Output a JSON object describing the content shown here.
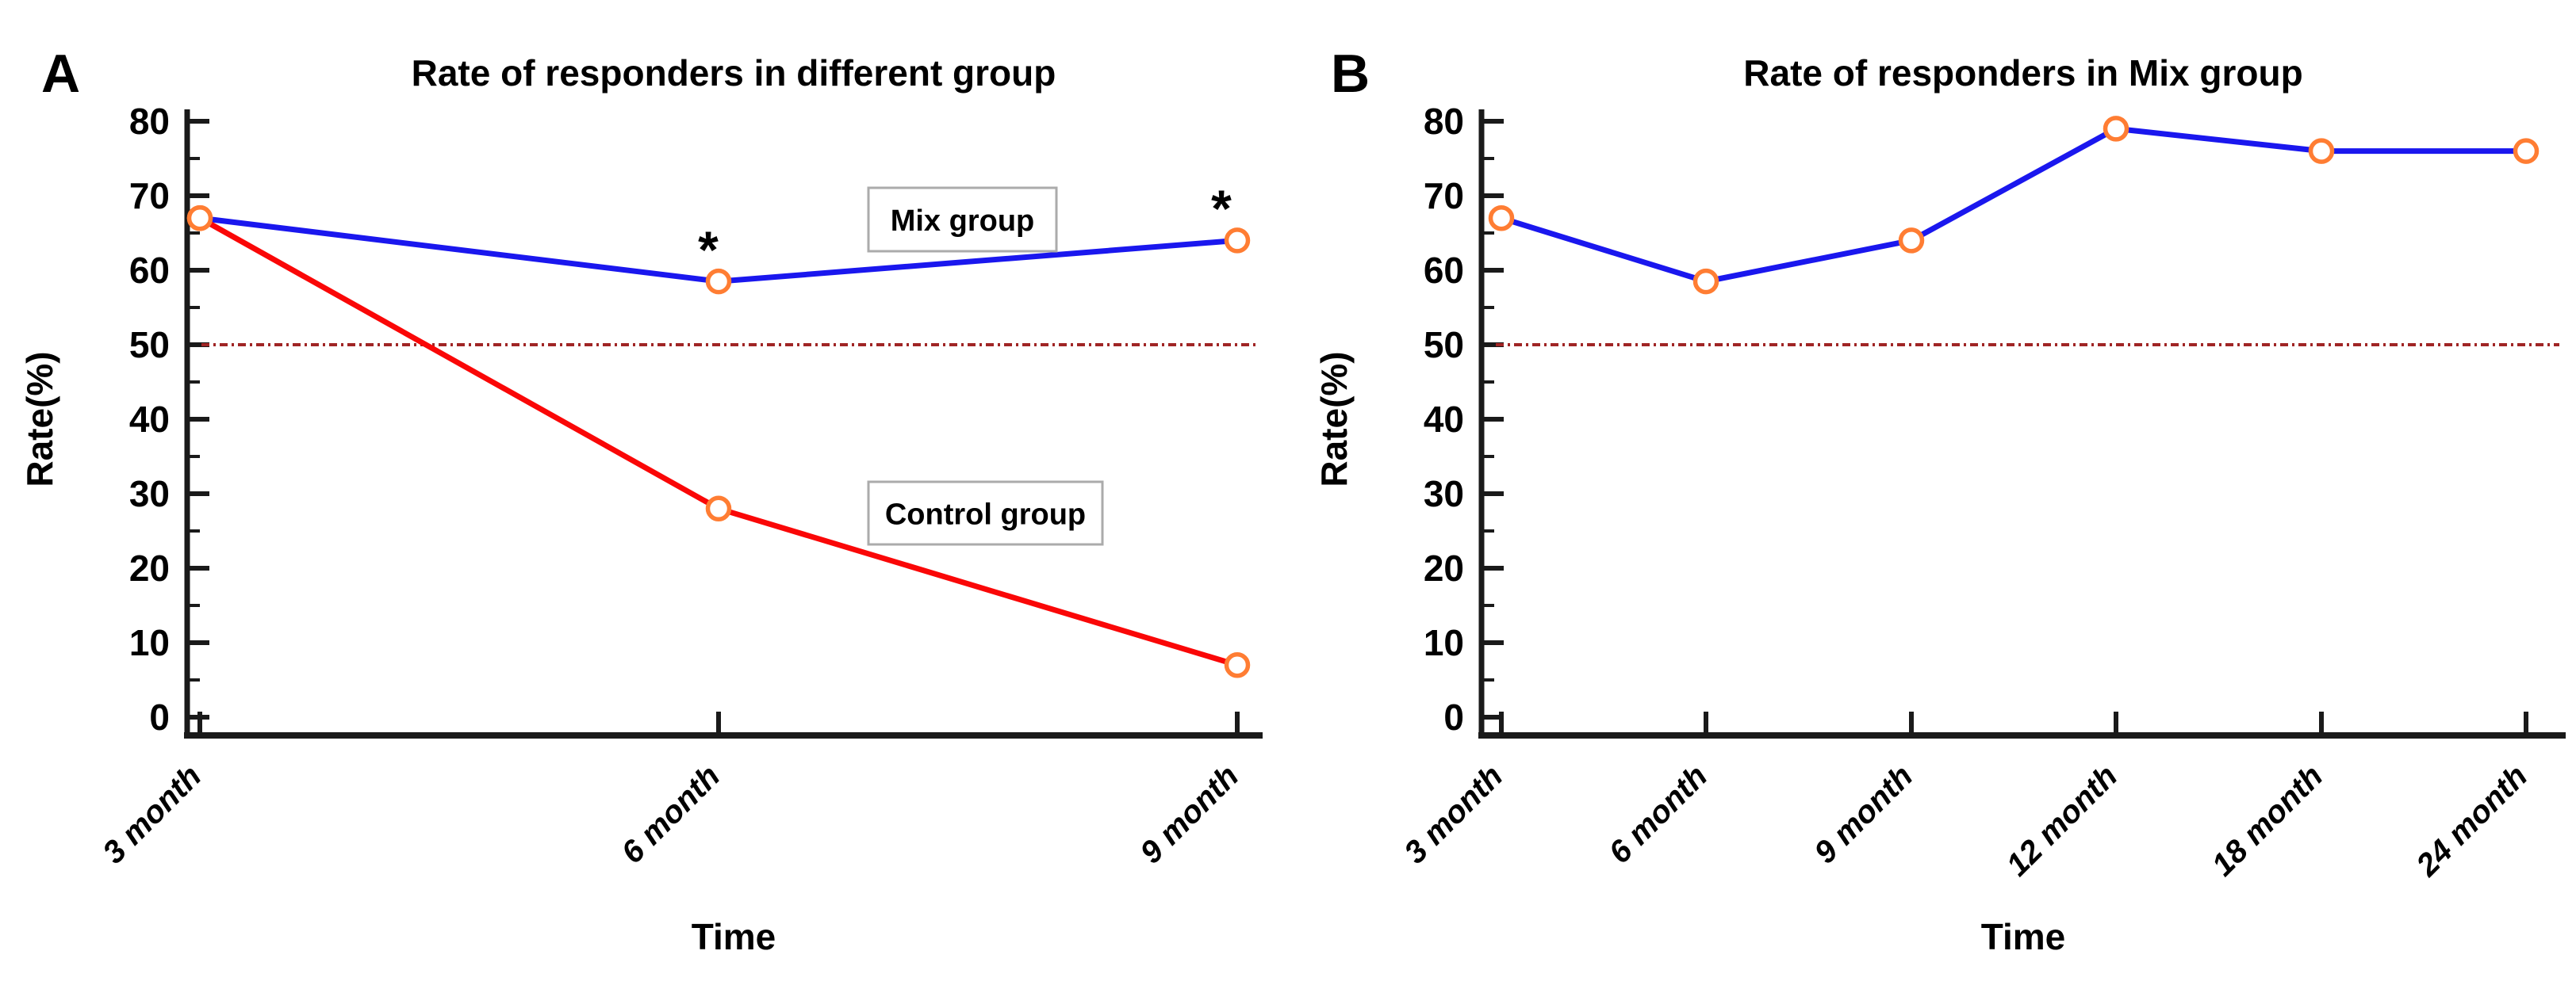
{
  "figure": {
    "background_color": "#FFFFFF",
    "axis_color": "#1A1A1A",
    "text_color": "#000000"
  },
  "chart_data": [
    {
      "type": "line",
      "panel_label": "A",
      "title": "Rate of responders in different group",
      "xlabel": "Time",
      "ylabel": "Rate(%)",
      "categories": [
        "3 month",
        "6 month",
        "9 month"
      ],
      "series": [
        {
          "name": "Mix group",
          "values": [
            67,
            58.5,
            64
          ],
          "line_color": "#1A17EE"
        },
        {
          "name": "Control group",
          "values": [
            67,
            28,
            7
          ],
          "line_color": "#FA0707"
        }
      ],
      "marker": {
        "shape": "open-circle",
        "stroke": "#FF7D33",
        "fill": "#FFFFFF"
      },
      "reference_line": {
        "value": 50,
        "color": "#A02525",
        "style": "dash-dot"
      },
      "ylim": [
        0,
        80
      ],
      "y_major_step": 10,
      "y_minor_step": 5,
      "y_tick_labels": [
        "0",
        "10",
        "20",
        "30",
        "40",
        "50",
        "60",
        "70",
        "80"
      ],
      "grid": false,
      "legend_position": "none",
      "annotations": [
        {
          "type": "series-label",
          "text": "Mix group",
          "series": "Mix group"
        },
        {
          "type": "series-label",
          "text": "Control group",
          "series": "Control group"
        },
        {
          "type": "significance",
          "symbol": "*",
          "category": "6 month",
          "series": "Mix group"
        },
        {
          "type": "significance",
          "symbol": "*",
          "category": "9 month",
          "series": "Mix group"
        }
      ]
    },
    {
      "type": "line",
      "panel_label": "B",
      "title": "Rate of responders in Mix group",
      "xlabel": "Time",
      "ylabel": "Rate(%)",
      "categories": [
        "3 month",
        "6 month",
        "9 month",
        "12 month",
        "18 month",
        "24 month"
      ],
      "series": [
        {
          "name": "Mix group",
          "values": [
            67,
            58.5,
            64,
            79,
            76,
            76
          ],
          "line_color": "#1A17EE"
        }
      ],
      "marker": {
        "shape": "open-circle",
        "stroke": "#FF7D33",
        "fill": "#FFFFFF"
      },
      "reference_line": {
        "value": 50,
        "color": "#A02525",
        "style": "dash-dot"
      },
      "ylim": [
        0,
        80
      ],
      "y_major_step": 10,
      "y_minor_step": 5,
      "y_tick_labels": [
        "0",
        "10",
        "20",
        "30",
        "40",
        "50",
        "60",
        "70",
        "80"
      ],
      "grid": false,
      "legend_position": "none",
      "annotations": []
    }
  ]
}
